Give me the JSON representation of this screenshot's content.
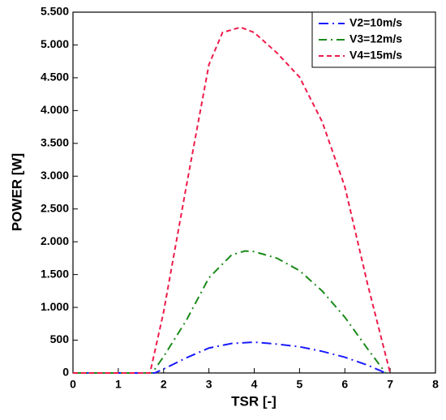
{
  "chart_data": {
    "type": "line",
    "xlabel": "TSR [-]",
    "ylabel": "POWER [W]",
    "xlim": [
      0,
      8
    ],
    "xticks": [
      0,
      1,
      2,
      3,
      4,
      5,
      6,
      7,
      8
    ],
    "ylim": [
      0,
      5500
    ],
    "yticks": [
      0,
      500,
      {
        "value": 1000,
        "label": "1.000"
      },
      {
        "value": 1500,
        "label": "1.500"
      },
      {
        "value": 2000,
        "label": "2.000"
      },
      {
        "value": 2500,
        "label": "2.500"
      },
      {
        "value": 3000,
        "label": "3.000"
      },
      {
        "value": 3500,
        "label": "3.500"
      },
      {
        "value": 4000,
        "label": "4.000"
      },
      {
        "value": 4500,
        "label": "4.500"
      },
      {
        "value": 5000,
        "label": "5.000"
      },
      {
        "value": 5500,
        "label": "5.500"
      }
    ],
    "legend": "upper right",
    "series": [
      {
        "name": "V2=10m/s",
        "color": "#1a1aff",
        "dash": "12 5 2 5",
        "x": [
          0,
          0.5,
          1,
          1.5,
          1.8,
          2,
          2.5,
          3,
          3.5,
          4,
          4.5,
          5,
          5.5,
          6,
          6.5,
          6.8,
          6.9
        ],
        "values": [
          0,
          0,
          0,
          0,
          0,
          60,
          230,
          380,
          450,
          470,
          440,
          400,
          330,
          240,
          120,
          30,
          0
        ]
      },
      {
        "name": "V3=12m/s",
        "color": "#1a8a1a",
        "dash": "10 5 2 5",
        "x": [
          0,
          0.5,
          1,
          1.5,
          1.75,
          2,
          2.5,
          3,
          3.5,
          3.8,
          4,
          4.5,
          5,
          5.5,
          6,
          6.5,
          6.9
        ],
        "values": [
          0,
          0,
          0,
          0,
          0,
          250,
          800,
          1450,
          1800,
          1860,
          1850,
          1750,
          1560,
          1250,
          850,
          370,
          0
        ]
      },
      {
        "name": "V4=15m/s",
        "color": "#ee1a4a",
        "dash": "6 4",
        "x": [
          0,
          0.5,
          1,
          1.5,
          1.7,
          2,
          2.5,
          3,
          3.3,
          3.7,
          4,
          4.5,
          5,
          5.5,
          6,
          6.5,
          7
        ],
        "values": [
          0,
          0,
          0,
          0,
          0,
          930,
          2840,
          4700,
          5190,
          5270,
          5190,
          4880,
          4510,
          3830,
          2840,
          1360,
          0
        ]
      }
    ]
  }
}
